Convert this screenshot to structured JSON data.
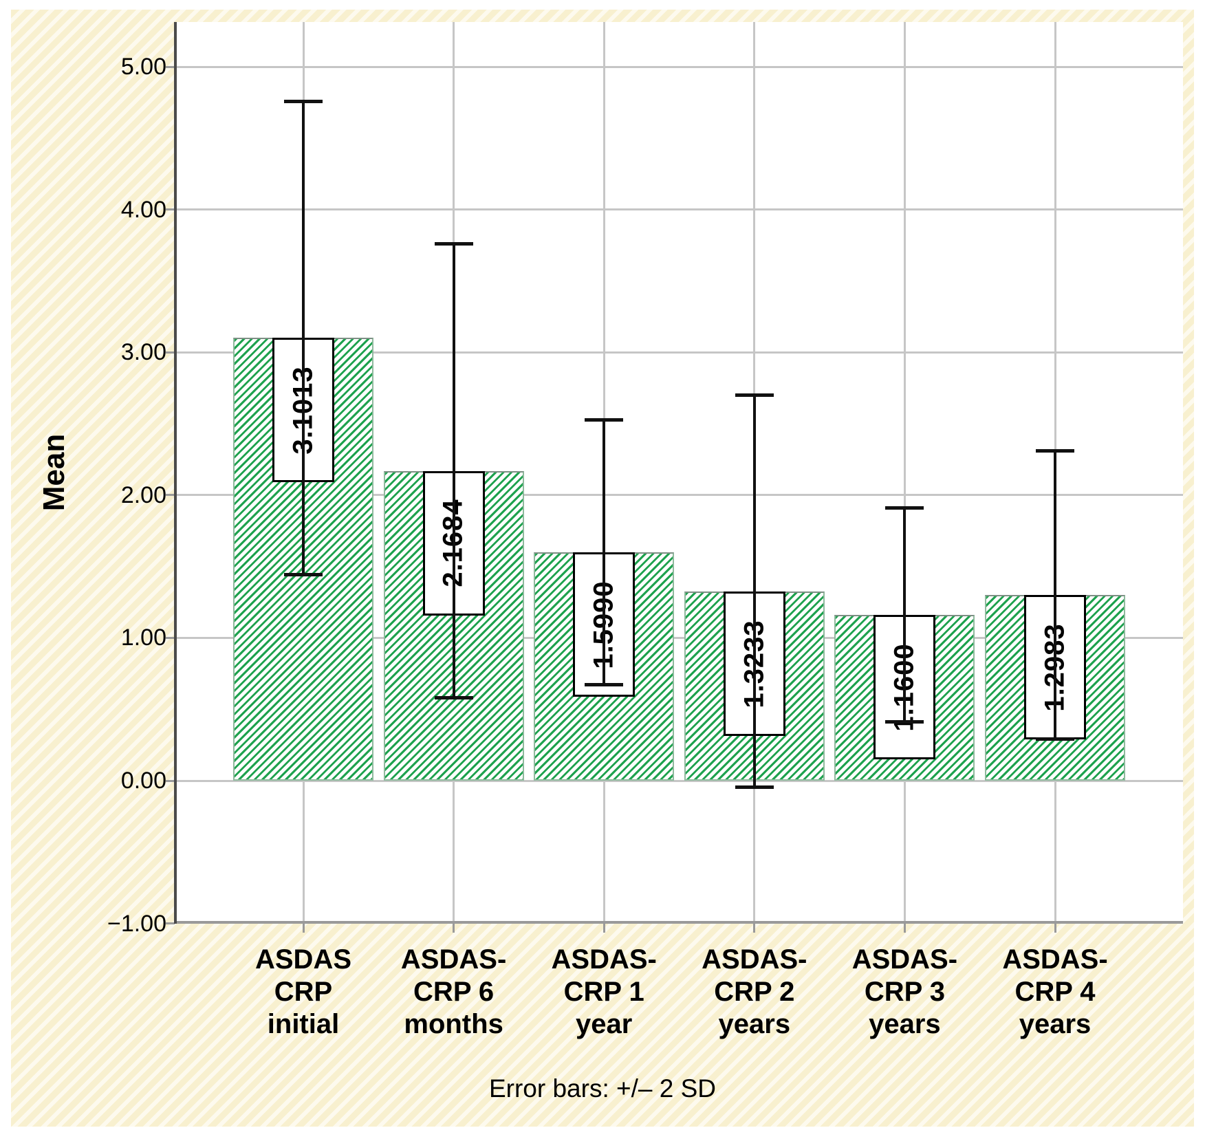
{
  "figure": {
    "background_color": "#f8f0cf",
    "plot_background": "#ffffff",
    "gridline_color": "#c6c6c6",
    "axis_color": "#4a4a4a",
    "bar_hatch_color": "#1ea24e",
    "error_bar_color": "#111111"
  },
  "chart_data": {
    "type": "bar",
    "title": "",
    "xlabel": "",
    "ylabel": "Mean",
    "caption": "Error bars: +/– 2 SD",
    "categories": [
      "ASDAS\nCRP\ninitial",
      "ASDAS-\nCRP 6\nmonths",
      "ASDAS-\nCRP 1\nyear",
      "ASDAS-\nCRP 2\nyears",
      "ASDAS-\nCRP 3\nyears",
      "ASDAS-\nCRP 4\nyears"
    ],
    "values": [
      3.1013,
      2.1684,
      1.599,
      1.3233,
      1.16,
      1.2983
    ],
    "value_labels": [
      "3.1013",
      "2.1684",
      "1.5990",
      "1.3233",
      "1.1600",
      "1.2983"
    ],
    "error_upper": [
      4.76,
      3.76,
      2.53,
      2.7,
      1.91,
      2.31
    ],
    "error_lower": [
      1.44,
      0.58,
      0.67,
      -0.05,
      0.41,
      0.29
    ],
    "ytick_values": [
      5,
      4,
      3,
      2,
      1,
      0,
      -1
    ],
    "ytick_labels": [
      "5.00",
      "4.00",
      "3.00",
      "2.00",
      "1.00",
      "0.00",
      "−1.00"
    ],
    "ylim": [
      -1.0,
      5.32
    ],
    "grid": true,
    "legend_position": "none",
    "bar_style": "green-diagonal-hatch"
  }
}
